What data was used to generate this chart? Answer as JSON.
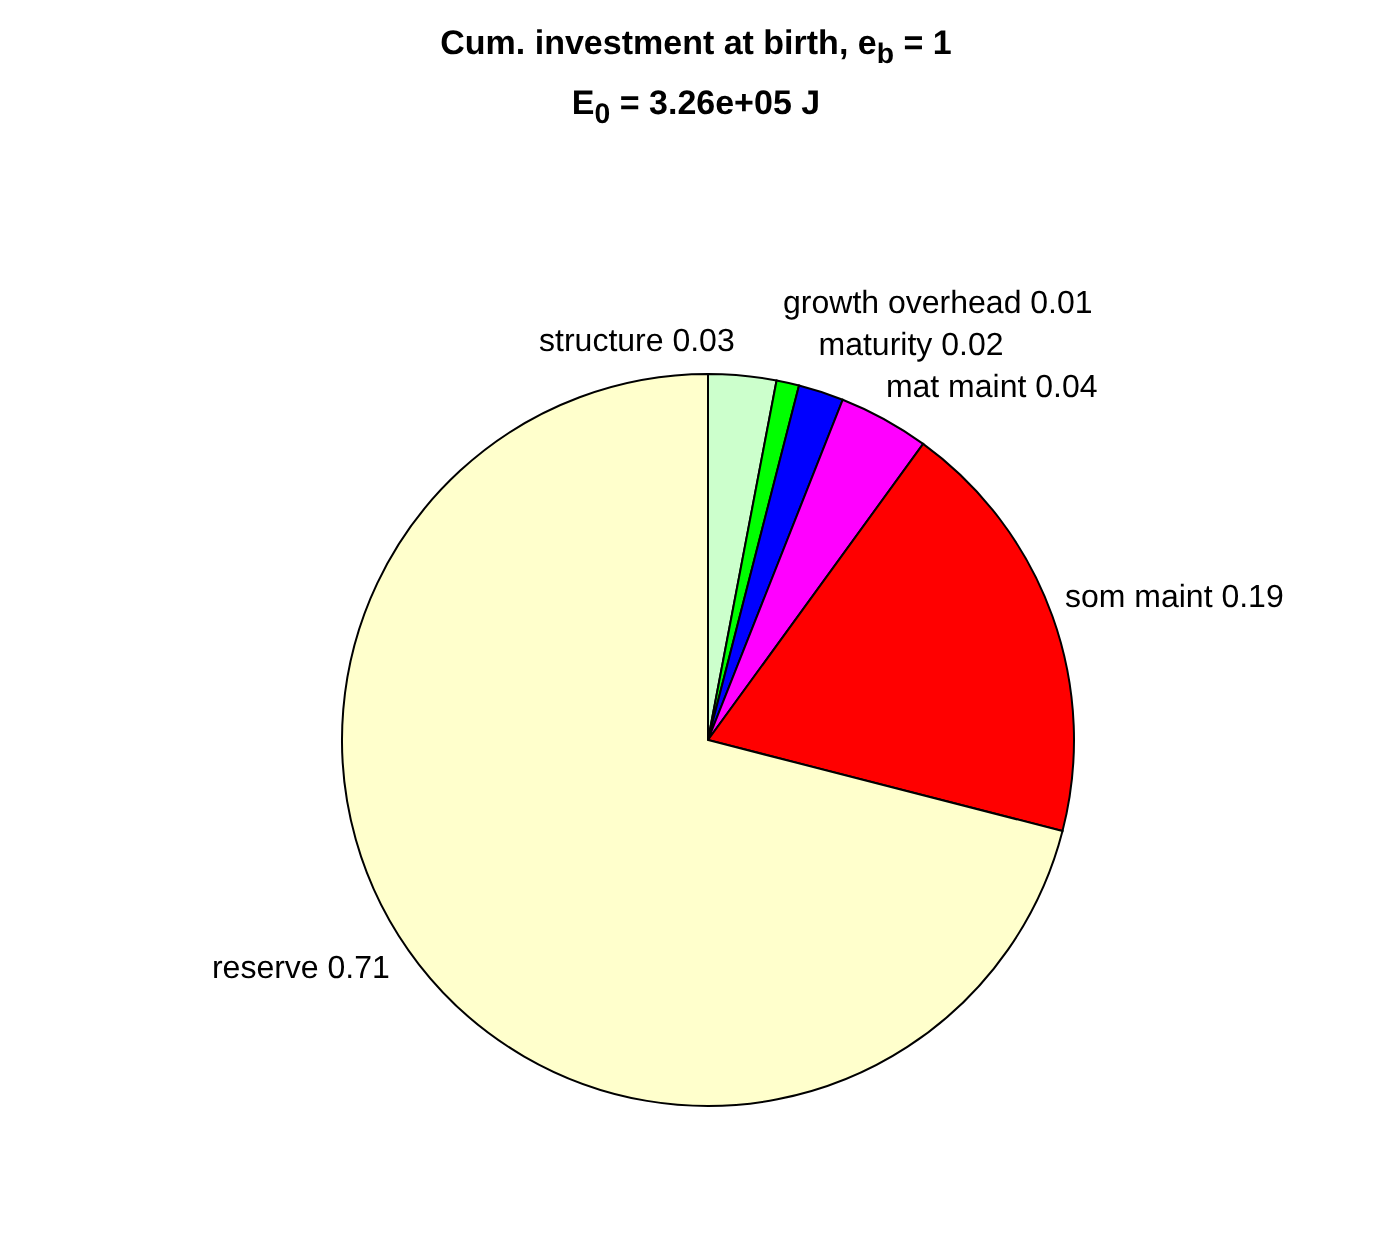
{
  "chart_data": {
    "type": "pie",
    "title": "Cum. investment at birth, e$_{b}$ = 1",
    "subtitle": "E$_{0}$ = 3.26e+05 J",
    "categories": [
      "structure",
      "growth overhead",
      "maturity",
      "mat maint",
      "som maint",
      "reserve"
    ],
    "values": [
      0.03,
      0.01,
      0.02,
      0.04,
      0.19,
      0.71
    ],
    "colors": [
      "#ccffcc",
      "#00ff00",
      "#0000ff",
      "#ff00ff",
      "#ff0000",
      "#ffffcc"
    ],
    "data_labels": true,
    "legend": false
  }
}
